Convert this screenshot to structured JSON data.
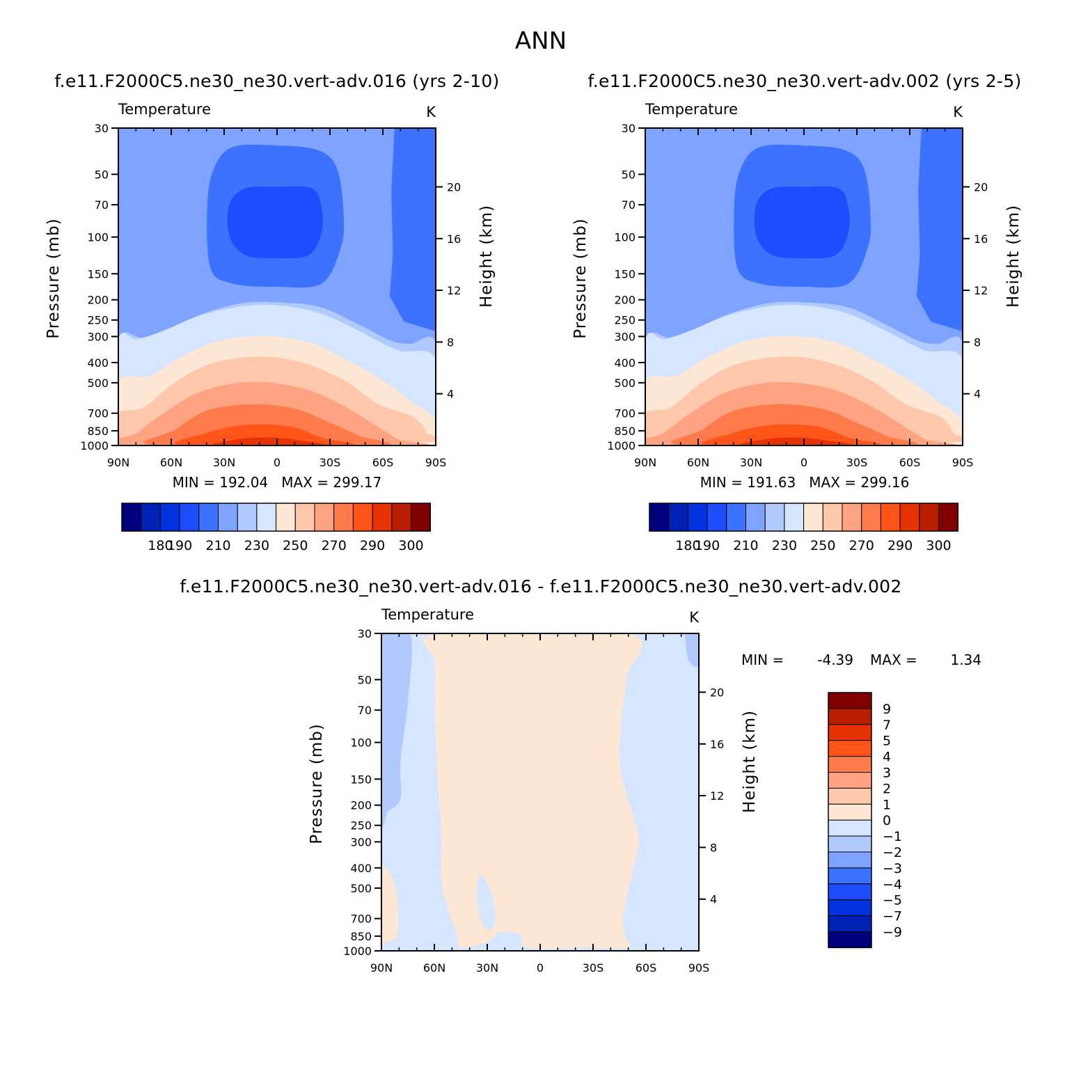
{
  "figure": {
    "title": "ANN",
    "diff_title": "f.e11.F2000C5.ne30_ne30.vert-adv.016 - f.e11.F2000C5.ne30_ne30.vert-adv.002"
  },
  "palette": [
    "#00007f",
    "#0022b4",
    "#0033e0",
    "#1e4cff",
    "#3d72ff",
    "#7fa4ff",
    "#b0c9ff",
    "#d6e6ff",
    "#ffe7d6",
    "#ffc8ad",
    "#ffa382",
    "#ff7b4b",
    "#ff5519",
    "#e63200",
    "#b91e00",
    "#800000"
  ],
  "chart_data": [
    {
      "type": "contour",
      "variable": "Temperature",
      "units": "K",
      "title": "f.e11.F2000C5.ne30_ne30.vert-adv.016 (yrs 2-10)",
      "xlabel": "",
      "ylabel": "Pressure (mb)",
      "ylabel_right": "Height (km)",
      "x_ticks": [
        "90N",
        "60N",
        "30N",
        "0",
        "30S",
        "60S",
        "90S"
      ],
      "xlim": [
        90,
        -90
      ],
      "y_ticks": [
        30,
        50,
        70,
        100,
        150,
        200,
        250,
        300,
        400,
        500,
        700,
        850,
        1000
      ],
      "ylim": [
        1000,
        30
      ],
      "y_right_ticks": [
        4,
        8,
        12,
        16,
        20
      ],
      "min_label": "MIN = 192.04",
      "max_label": "MAX = 299.17",
      "min": 192.04,
      "max": 299.17,
      "colorbar_labels": [
        "180",
        "190",
        "210",
        "230",
        "250",
        "270",
        "290",
        "300"
      ]
    },
    {
      "type": "contour",
      "variable": "Temperature",
      "units": "K",
      "title": "f.e11.F2000C5.ne30_ne30.vert-adv.002 (yrs 2-5)",
      "xlabel": "",
      "ylabel": "Pressure (mb)",
      "ylabel_right": "Height (km)",
      "x_ticks": [
        "90N",
        "60N",
        "30N",
        "0",
        "30S",
        "60S",
        "90S"
      ],
      "xlim": [
        90,
        -90
      ],
      "y_ticks": [
        30,
        50,
        70,
        100,
        150,
        200,
        250,
        300,
        400,
        500,
        700,
        850,
        1000
      ],
      "ylim": [
        1000,
        30
      ],
      "y_right_ticks": [
        4,
        8,
        12,
        16,
        20
      ],
      "min_label": "MIN = 191.63",
      "max_label": "MAX = 299.16",
      "min": 191.63,
      "max": 299.16,
      "colorbar_labels": [
        "180",
        "190",
        "210",
        "230",
        "250",
        "270",
        "290",
        "300"
      ]
    },
    {
      "type": "contour",
      "variable": "Temperature",
      "units": "K",
      "title": "f.e11.F2000C5.ne30_ne30.vert-adv.016 - f.e11.F2000C5.ne30_ne30.vert-adv.002",
      "xlabel": "",
      "ylabel": "Pressure (mb)",
      "ylabel_right": "Height (km)",
      "x_ticks": [
        "90N",
        "60N",
        "30N",
        "0",
        "30S",
        "60S",
        "90S"
      ],
      "xlim": [
        90,
        -90
      ],
      "y_ticks": [
        30,
        50,
        70,
        100,
        150,
        200,
        250,
        300,
        400,
        500,
        700,
        850,
        1000
      ],
      "ylim": [
        1000,
        30
      ],
      "y_right_ticks": [
        4,
        8,
        12,
        16,
        20
      ],
      "min_label": "MIN =",
      "min_value": "-4.39",
      "max_label": "MAX =",
      "max_value": "1.34",
      "min": -4.39,
      "max": 1.34,
      "colorbar_labels": [
        "9",
        "7",
        "5",
        "4",
        "3",
        "2",
        "1",
        "0",
        "-1",
        "-2",
        "-3",
        "-4",
        "-5",
        "-7",
        "-9"
      ]
    }
  ]
}
